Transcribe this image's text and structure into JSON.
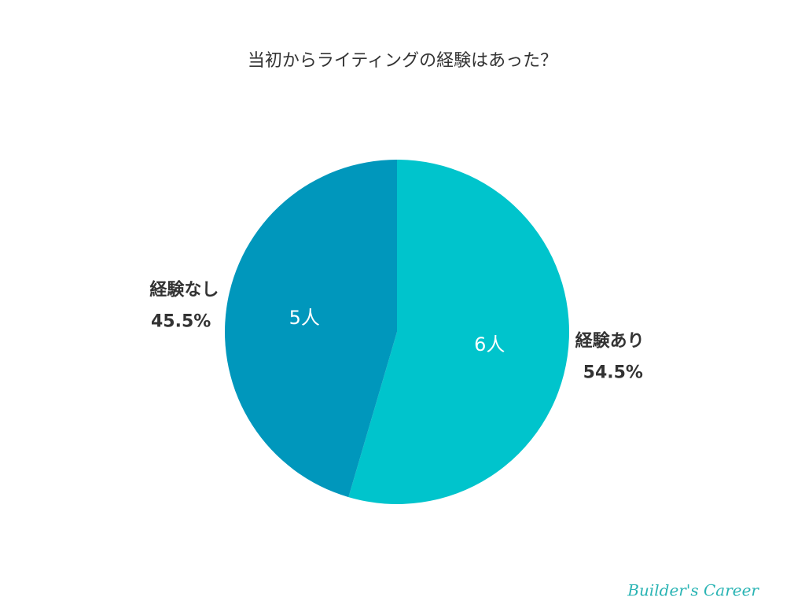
{
  "chart_data": {
    "type": "pie",
    "title": "当初からライティングの経験はあった？",
    "categories": [
      "経験あり",
      "経験なし"
    ],
    "values": [
      6,
      5
    ],
    "value_labels": [
      "6人",
      "5人"
    ],
    "percent_labels": [
      "54.5%",
      "45.5%"
    ],
    "colors": [
      "#00c4cc",
      "#0097bc"
    ],
    "watermark": "Builder's Career"
  }
}
